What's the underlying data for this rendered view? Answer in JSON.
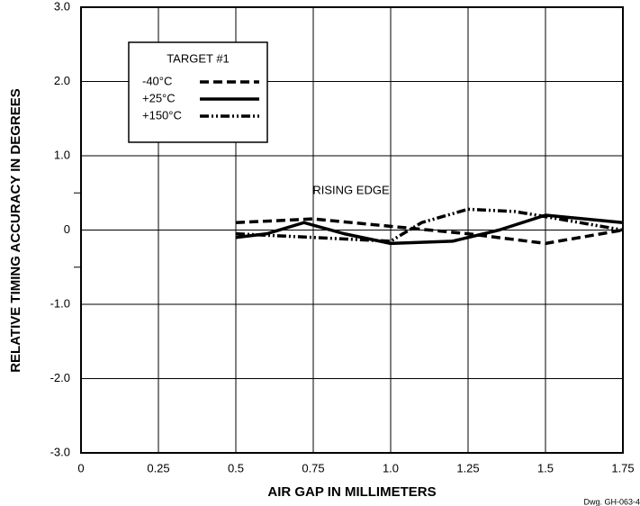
{
  "chart_data": {
    "type": "line",
    "xlabel": "AIR GAP IN MILLIMETERS",
    "ylabel": "RELATIVE TIMING ACCURACY IN DEGREES",
    "legend_title": "TARGET #1",
    "annotation": "RISING EDGE",
    "drawing_number": "Dwg. GH-063-4",
    "xlim": [
      0,
      1.75
    ],
    "xticks": [
      0,
      0.25,
      0.5,
      0.75,
      {
        "value": 1,
        "label": "1.0"
      },
      1.25,
      1.5,
      1.75
    ],
    "ylim": [
      -3,
      3
    ],
    "yticks": [
      {
        "value": 3,
        "label": "3.0"
      },
      {
        "value": 2,
        "label": "2.0"
      },
      {
        "value": 1,
        "label": "1.0"
      },
      0,
      {
        "value": -1,
        "label": "-1.0"
      },
      {
        "value": -2,
        "label": "-2.0"
      },
      {
        "value": -3,
        "label": "-3.0"
      }
    ],
    "minor_yticks": [
      0.5,
      -0.5
    ],
    "grid": true,
    "legend": "upper left",
    "series": [
      {
        "name": "-40°C",
        "color": "#000000",
        "line_style": "dashed",
        "x": [
          0.5,
          0.75,
          1.0,
          1.25,
          1.5,
          1.75
        ],
        "values": [
          0.1,
          0.15,
          0.05,
          -0.05,
          -0.18,
          0.0
        ]
      },
      {
        "name": "+25°C",
        "color": "#000000",
        "line_style": "solid",
        "x": [
          0.5,
          0.6,
          0.72,
          0.85,
          1.0,
          1.2,
          1.35,
          1.5,
          1.75
        ],
        "values": [
          -0.1,
          -0.05,
          0.1,
          -0.05,
          -0.18,
          -0.15,
          0.0,
          0.2,
          0.1
        ]
      },
      {
        "name": "+150°C",
        "color": "#000000",
        "line_style": "dashdot",
        "x": [
          0.5,
          0.75,
          1.0,
          1.1,
          1.25,
          1.4,
          1.5,
          1.75
        ],
        "values": [
          -0.05,
          -0.1,
          -0.15,
          0.1,
          0.28,
          0.25,
          0.18,
          0.0
        ]
      }
    ]
  }
}
